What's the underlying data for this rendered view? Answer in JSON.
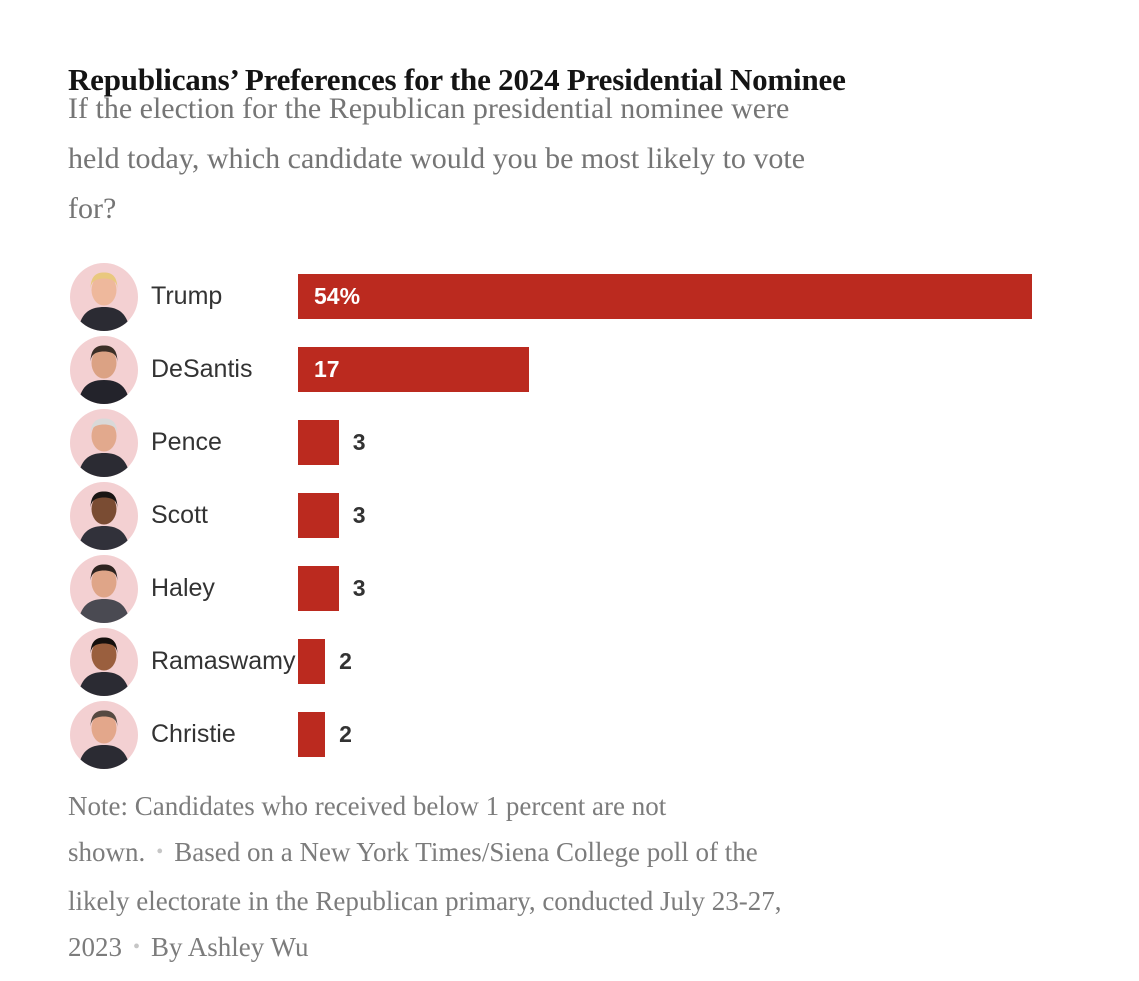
{
  "header": {
    "title": "Republicans’ Preferences for the 2024 Presidential Nominee",
    "subtitle_lines": [
      "If the election for the Republican presidential nominee were",
      "held today, which candidate would you be most likely to vote",
      "for?"
    ]
  },
  "chart_data": {
    "type": "bar",
    "orientation": "horizontal",
    "title": "Republicans’ Preferences for the 2024 Presidential Nominee",
    "categories": [
      "Trump",
      "DeSantis",
      "Pence",
      "Scott",
      "Haley",
      "Ramaswamy",
      "Christie"
    ],
    "values": [
      54,
      17,
      3,
      3,
      3,
      2,
      2
    ],
    "unit": "percent of likely Republican primary electorate",
    "xlim": [
      0,
      54
    ],
    "grid": false,
    "legend": false,
    "bar_color": "#bb2a1f",
    "rows": [
      {
        "label": "Trump",
        "value": 54,
        "value_label_inside": "54%",
        "value_label_outside": "",
        "avatar": {
          "icon": "trump-photo",
          "bg": "#f3d0d2",
          "skin": "#eeb89c",
          "hair": "#e9c87e",
          "suit": "#2b2b33"
        }
      },
      {
        "label": "DeSantis",
        "value": 17,
        "value_label_inside": "17",
        "value_label_outside": "",
        "avatar": {
          "icon": "desantis-photo",
          "bg": "#f3d0d2",
          "skin": "#dba284",
          "hair": "#3b2f27",
          "suit": "#23232b"
        }
      },
      {
        "label": "Pence",
        "value": 3,
        "value_label_inside": "",
        "value_label_outside": "3",
        "avatar": {
          "icon": "pence-photo",
          "bg": "#f3d0d2",
          "skin": "#e2a98d",
          "hair": "#d9d9d9",
          "suit": "#2b2b33"
        }
      },
      {
        "label": "Scott",
        "value": 3,
        "value_label_inside": "",
        "value_label_outside": "3",
        "avatar": {
          "icon": "scott-photo",
          "bg": "#f3d0d2",
          "skin": "#7a4c33",
          "hair": "#191513",
          "suit": "#31313a"
        }
      },
      {
        "label": "Haley",
        "value": 3,
        "value_label_inside": "",
        "value_label_outside": "3",
        "avatar": {
          "icon": "haley-photo",
          "bg": "#f3d0d2",
          "skin": "#dfa588",
          "hair": "#2e2420",
          "suit": "#4a4a52"
        }
      },
      {
        "label": "Ramaswamy",
        "value": 2,
        "value_label_inside": "",
        "value_label_outside": "2",
        "avatar": {
          "icon": "ramaswamy-photo",
          "bg": "#f3d0d2",
          "skin": "#9a5f3e",
          "hair": "#15100d",
          "suit": "#2b2b33"
        }
      },
      {
        "label": "Christie",
        "value": 2,
        "value_label_inside": "",
        "value_label_outside": "2",
        "avatar": {
          "icon": "christie-photo",
          "bg": "#f3d0d2",
          "skin": "#e3a78b",
          "hair": "#564a42",
          "suit": "#2b2b33"
        }
      }
    ]
  },
  "note": {
    "lines": [
      {
        "parts": [
          "Note: Candidates who received below 1 percent are not"
        ]
      },
      {
        "parts": [
          "shown.",
          "•",
          "Based on a New York Times/Siena College poll of the"
        ]
      },
      {
        "parts": [
          "likely electorate in the Republican primary, conducted July 23-27,"
        ]
      },
      {
        "parts": [
          "2023",
          "•",
          "By Ashley Wu"
        ]
      }
    ]
  },
  "colors": {
    "bar_red": "#bb2a1f",
    "avatar_pink": "#f3d0d2",
    "title_text": "#141414",
    "subtitle_text": "#757575",
    "note_text": "#7c7c7c",
    "name_text": "#333333",
    "value_inside_text": "#ffffff",
    "value_outside_text": "#333333",
    "bullet": "#c6c6c6",
    "background": "#ffffff"
  }
}
